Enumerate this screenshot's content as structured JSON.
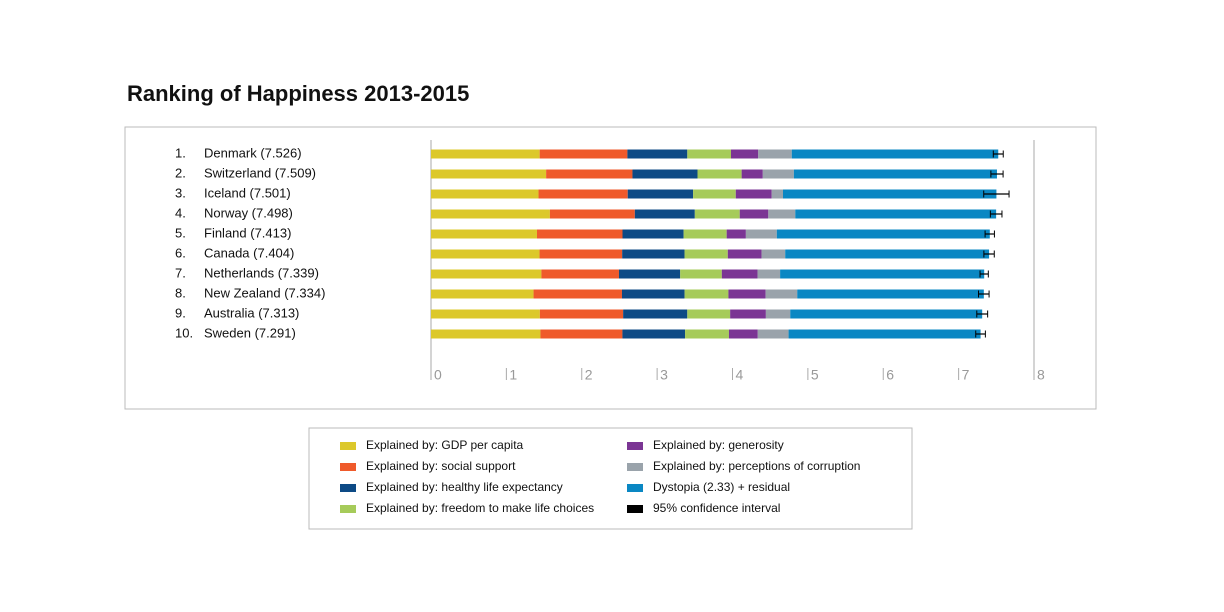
{
  "chart_data": {
    "type": "stacked-bar-horizontal",
    "title": "Ranking of Happiness 2013-2015",
    "ranks": [
      "1.",
      "2.",
      "3.",
      "4.",
      "5.",
      "6.",
      "7.",
      "8.",
      "9.",
      "10."
    ],
    "categories": [
      "Denmark  (7.526)",
      "Switzerland  (7.509)",
      "Iceland  (7.501)",
      "Norway  (7.498)",
      "Finland  (7.413)",
      "Canada  (7.404)",
      "Netherlands  (7.339)",
      "New Zealand  (7.334)",
      "Australia  (7.313)",
      "Sweden (7.291)"
    ],
    "series": [
      {
        "name": "Explained by: GDP per capita",
        "color": "#dcc82b",
        "values": [
          1.44178,
          1.52733,
          1.42666,
          1.57744,
          1.40598,
          1.44015,
          1.46468,
          1.36066,
          1.44443,
          1.45181
        ]
      },
      {
        "name": "Explained by: social support",
        "color": "#ef5a2b",
        "values": [
          1.16374,
          1.14524,
          1.18326,
          1.1269,
          1.13464,
          1.0961,
          1.02912,
          1.17278,
          1.10476,
          1.08764
        ]
      },
      {
        "name": "Explained by: healthy life expectancy",
        "color": "#0d4a85",
        "values": [
          0.79504,
          0.86303,
          0.86733,
          0.79579,
          0.81091,
          0.8276,
          0.81231,
          0.83096,
          0.8512,
          0.83121
        ]
      },
      {
        "name": "Explained by: freedom to make life choices",
        "color": "#a6cb5a",
        "values": [
          0.57941,
          0.58557,
          0.56624,
          0.59609,
          0.57104,
          0.5737,
          0.55211,
          0.58147,
          0.56837,
          0.58218
        ]
      },
      {
        "name": "Explained by: generosity",
        "color": "#7b3594",
        "values": [
          0.36171,
          0.28083,
          0.47678,
          0.37895,
          0.25492,
          0.44834,
          0.47416,
          0.49401,
          0.47407,
          0.38254
        ]
      },
      {
        "name": "Explained by: perceptions of corruption",
        "color": "#9aa3ab",
        "values": [
          0.44453,
          0.41203,
          0.14975,
          0.35776,
          0.41004,
          0.31329,
          0.29927,
          0.41904,
          0.32331,
          0.40867
        ]
      },
      {
        "name": "Dystopia (2.33) + residual",
        "color": "#0a87c3",
        "values": [
          2.73939,
          2.69463,
          2.83137,
          2.66465,
          2.82596,
          2.70485,
          2.70749,
          2.47553,
          2.5465,
          2.54734
        ]
      }
    ],
    "error_bars": {
      "name": "95% confidence interval",
      "color": "#000000",
      "low": [
        7.46,
        7.428,
        7.333,
        7.421,
        7.351,
        7.335,
        7.284,
        7.264,
        7.241,
        7.227
      ],
      "high": [
        7.592,
        7.59,
        7.669,
        7.575,
        7.475,
        7.473,
        7.394,
        7.404,
        7.385,
        7.355
      ]
    },
    "xlim": [
      0,
      8
    ],
    "xticks": [
      0,
      1,
      2,
      3,
      4,
      5,
      6,
      7,
      8
    ]
  }
}
